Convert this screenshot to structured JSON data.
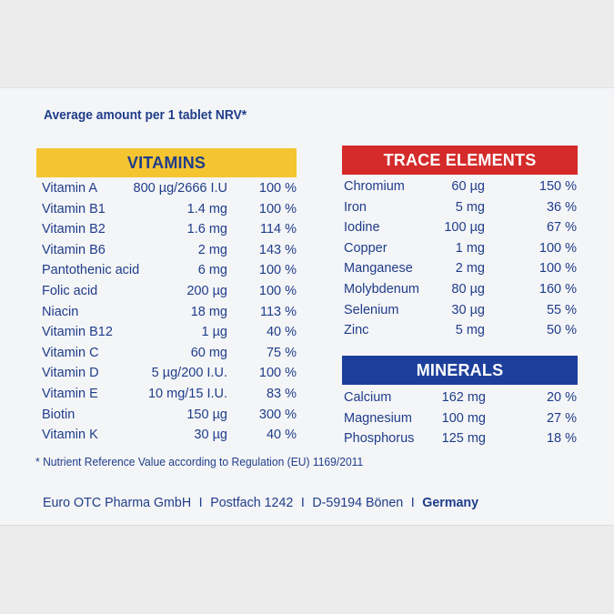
{
  "heading": "Average amount per 1 tablet NRV*",
  "vitamins": {
    "title": "VITAMINS",
    "rows": [
      {
        "name": "Vitamin A",
        "amount": "800 µg/2666 I.U",
        "nrv": "100 %"
      },
      {
        "name": "Vitamin B1",
        "amount": "1.4 mg",
        "nrv": "100 %"
      },
      {
        "name": "Vitamin B2",
        "amount": "1.6 mg",
        "nrv": "114 %"
      },
      {
        "name": "Vitamin B6",
        "amount": "2 mg",
        "nrv": "143 %"
      },
      {
        "name": "Pantothenic acid",
        "amount": "6 mg",
        "nrv": "100 %"
      },
      {
        "name": "Folic acid",
        "amount": "200 µg",
        "nrv": "100 %"
      },
      {
        "name": "Niacin",
        "amount": "18 mg",
        "nrv": "113 %"
      },
      {
        "name": "Vitamin B12",
        "amount": "1 µg",
        "nrv": "40 %"
      },
      {
        "name": "Vitamin C",
        "amount": "60 mg",
        "nrv": "75 %"
      },
      {
        "name": "Vitamin D",
        "amount": "5 µg/200 I.U.",
        "nrv": "100 %"
      },
      {
        "name": "Vitamin E",
        "amount": "10 mg/15 I.U.",
        "nrv": "83 %"
      },
      {
        "name": "Biotin",
        "amount": "150 µg",
        "nrv": "300 %"
      },
      {
        "name": "Vitamin K",
        "amount": "30 µg",
        "nrv": "40 %"
      }
    ]
  },
  "trace_elements": {
    "title": "TRACE ELEMENTS",
    "rows": [
      {
        "name": "Chromium",
        "amount": "60 µg",
        "nrv": "150 %"
      },
      {
        "name": "Iron",
        "amount": "5 mg",
        "nrv": "36 %"
      },
      {
        "name": "Iodine",
        "amount": "100 µg",
        "nrv": "67 %"
      },
      {
        "name": "Copper",
        "amount": "1 mg",
        "nrv": "100 %"
      },
      {
        "name": "Manganese",
        "amount": "2 mg",
        "nrv": "100 %"
      },
      {
        "name": "Molybdenum",
        "amount": "80 µg",
        "nrv": "160 %"
      },
      {
        "name": "Selenium",
        "amount": "30 µg",
        "nrv": "55 %"
      },
      {
        "name": "Zinc",
        "amount": "5 mg",
        "nrv": "50 %"
      }
    ]
  },
  "minerals": {
    "title": "MINERALS",
    "rows": [
      {
        "name": "Calcium",
        "amount": "162 mg",
        "nrv": "20 %"
      },
      {
        "name": "Magnesium",
        "amount": "100 mg",
        "nrv": "27 %"
      },
      {
        "name": "Phosphorus",
        "amount": "125 mg",
        "nrv": "18 %"
      }
    ]
  },
  "footnote": "*  Nutrient Reference Value according to Regulation (EU) 1169/2011",
  "address": {
    "company": "Euro OTC Pharma GmbH",
    "postbox": "Postfach 1242",
    "city": "D-59194 Bönen",
    "country": "Germany",
    "separator": "I"
  },
  "colors": {
    "text": "#1f3d8a",
    "vitamins_bar": "#f5c531",
    "trace_bar": "#d42a2a",
    "minerals_bar": "#1d3f9c"
  }
}
